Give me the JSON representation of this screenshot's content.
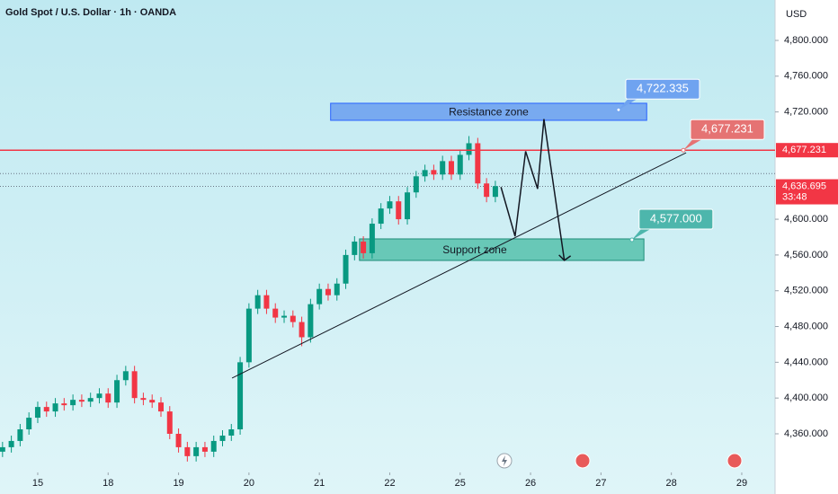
{
  "chart_data": {
    "type": "candlestick",
    "title": "Gold Spot / U.S. Dollar · 1h · OANDA",
    "currency": "USD",
    "x": [
      -0.5,
      -0.375,
      -0.25,
      -0.125,
      0,
      0.125,
      0.25,
      0.375,
      0.5,
      0.625,
      0.75,
      0.875,
      1,
      1.125,
      1.25,
      1.375,
      1.5,
      1.625,
      1.75,
      1.875,
      2,
      2.125,
      2.25,
      2.375,
      2.5,
      2.625,
      2.75,
      2.875,
      3,
      3.125,
      3.25,
      3.375,
      3.5,
      3.625,
      3.75,
      3.875,
      4,
      4.125,
      4.25,
      4.375,
      4.5,
      4.625,
      4.75,
      4.875,
      5,
      5.125,
      5.25,
      5.375,
      5.5,
      5.625,
      5.75,
      5.875,
      6,
      6.125,
      6.25,
      6.375,
      6.5
    ],
    "open": [
      4340,
      4345,
      4352,
      4365,
      4378,
      4390,
      4385,
      4394,
      4392,
      4398,
      4396,
      4400,
      4405,
      4395,
      4420,
      4430,
      4400,
      4398,
      4395,
      4385,
      4360,
      4345,
      4335,
      4345,
      4340,
      4352,
      4358,
      4365,
      4440,
      4500,
      4515,
      4500,
      4490,
      4492,
      4485,
      4468,
      4505,
      4522,
      4515,
      4528,
      4560,
      4575,
      4562,
      4595,
      4612,
      4620,
      4600,
      4630,
      4648,
      4655,
      4650,
      4665,
      4650,
      4672,
      4685,
      4640,
      4625
    ],
    "high": [
      4351,
      4358,
      4371,
      4384,
      4396,
      4396,
      4400,
      4400,
      4404,
      4404,
      4406,
      4411,
      4411,
      4426,
      4436,
      4436,
      4406,
      4404,
      4401,
      4391,
      4366,
      4351,
      4351,
      4351,
      4358,
      4364,
      4371,
      4446,
      4506,
      4521,
      4521,
      4506,
      4498,
      4498,
      4491,
      4511,
      4528,
      4528,
      4534,
      4566,
      4581,
      4581,
      4601,
      4618,
      4626,
      4626,
      4636,
      4654,
      4661,
      4661,
      4671,
      4671,
      4678,
      4693,
      4691,
      4646,
      4643
    ],
    "low": [
      4334,
      4339,
      4346,
      4359,
      4372,
      4379,
      4379,
      4386,
      4386,
      4390,
      4390,
      4394,
      4389,
      4389,
      4414,
      4394,
      4392,
      4389,
      4379,
      4354,
      4339,
      4329,
      4329,
      4334,
      4334,
      4346,
      4352,
      4359,
      4434,
      4494,
      4494,
      4484,
      4484,
      4479,
      4458,
      4462,
      4499,
      4509,
      4509,
      4522,
      4554,
      4556,
      4556,
      4589,
      4606,
      4594,
      4594,
      4624,
      4642,
      4644,
      4644,
      4644,
      4644,
      4666,
      4634,
      4619,
      4619
    ],
    "close": [
      4345,
      4352,
      4365,
      4378,
      4390,
      4385,
      4394,
      4392,
      4398,
      4396,
      4400,
      4405,
      4395,
      4420,
      4430,
      4400,
      4398,
      4395,
      4385,
      4360,
      4345,
      4335,
      4345,
      4340,
      4352,
      4358,
      4365,
      4440,
      4500,
      4515,
      4500,
      4490,
      4492,
      4485,
      4468,
      4505,
      4522,
      4515,
      4528,
      4560,
      4575,
      4562,
      4595,
      4612,
      4620,
      4600,
      4630,
      4648,
      4655,
      4650,
      4665,
      4650,
      4672,
      4685,
      4640,
      4625,
      4637
    ],
    "up_color": "#089981",
    "down_color": "#f23645",
    "xlim": [
      -0.536,
      10.473
    ],
    "ylim": [
      4320.8,
      4845.2
    ],
    "xticks": [
      {
        "value": 0,
        "label": "15"
      },
      {
        "value": 1,
        "label": "18"
      },
      {
        "value": 2,
        "label": "19"
      },
      {
        "value": 3,
        "label": "20"
      },
      {
        "value": 4,
        "label": "21"
      },
      {
        "value": 5,
        "label": "22"
      },
      {
        "value": 6,
        "label": "25"
      },
      {
        "value": 7,
        "label": "26"
      },
      {
        "value": 8,
        "label": "27"
      },
      {
        "value": 9,
        "label": "28"
      },
      {
        "value": 10,
        "label": "29"
      }
    ],
    "yticks": [
      {
        "value": 4800,
        "label": "4,800.000"
      },
      {
        "value": 4760,
        "label": "4,760.000"
      },
      {
        "value": 4720,
        "label": "4,720.000"
      },
      {
        "value": 4600,
        "label": "4,600.000"
      },
      {
        "value": 4560,
        "label": "4,560.000"
      },
      {
        "value": 4520,
        "label": "4,520.000"
      },
      {
        "value": 4480,
        "label": "4,480.000"
      },
      {
        "value": 4440,
        "label": "4,440.000"
      },
      {
        "value": 4400,
        "label": "4,400.000"
      },
      {
        "value": 4360,
        "label": "4,360.000"
      }
    ],
    "horizontal_line": {
      "value": 4677.231,
      "label": "4,677.231",
      "color": "#f23645"
    },
    "last_price": {
      "value": 4636.695,
      "label": "4,636.695",
      "countdown": "33:48",
      "color": "#f23645"
    },
    "reference_line": 4651,
    "zones": [
      {
        "label": "Resistance zone",
        "x": [
          4.16,
          8.65
        ],
        "y": [
          4710.6,
          4729.7
        ],
        "color": "#6fa3f0",
        "border": "#2962ff"
      },
      {
        "label": "Support zone",
        "x": [
          4.57,
          8.61
        ],
        "y": [
          4553.9,
          4578
        ],
        "color": "#5cc3b0",
        "border": "#1e8c78"
      }
    ],
    "callouts": [
      {
        "x": 8.25,
        "value": 4722.335,
        "label": "4,722.335",
        "color": "#6fa3f0"
      },
      {
        "x": 9.17,
        "value": 4677.231,
        "label": "4,677.231",
        "color": "#e57373"
      },
      {
        "x": 8.44,
        "value": 4577,
        "label": "4,577.000",
        "color": "#4db6ac"
      }
    ],
    "trendline": {
      "x": [
        2.76,
        9.21
      ],
      "y": [
        4422.3,
        4674.4
      ]
    },
    "projection": {
      "x": [
        6.58,
        6.78,
        6.93,
        7.1,
        7.19,
        7.48
      ],
      "y": [
        4636,
        4581,
        4676,
        4634,
        4712,
        4554
      ]
    }
  }
}
